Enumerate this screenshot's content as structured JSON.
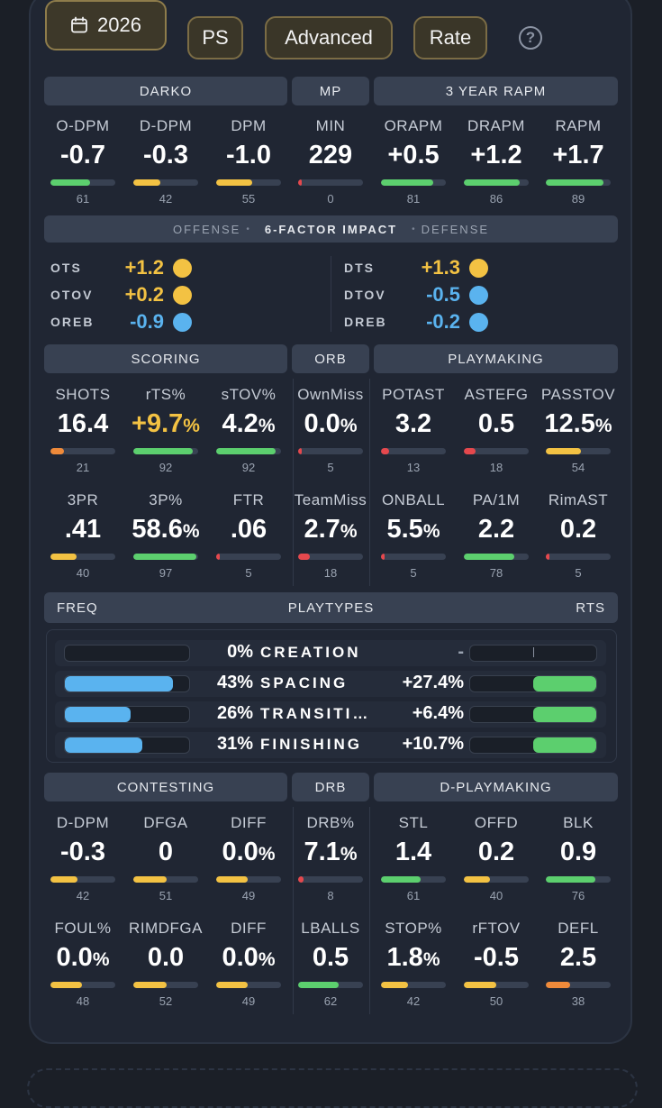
{
  "topbar": {
    "year_label": "2026",
    "ps_label": "PS",
    "advanced_label": "Advanced",
    "rate_label": "Rate",
    "help_label": "?"
  },
  "colors": {
    "green": "#5ccf6e",
    "gold": "#f3c243",
    "orange": "#ef8a3a",
    "red": "#e5484d",
    "blue": "#5ab3ef"
  },
  "headers": {
    "darko": "DARKO",
    "mp": "MP",
    "rapm": "3 YEAR RAPM",
    "scoring": "SCORING",
    "orb": "ORB",
    "playmaking": "PLAYMAKING",
    "contesting": "CONTESTING",
    "drb": "DRB",
    "dplaymaking": "D-PLAYMAKING"
  },
  "sixfactor": {
    "offense": "OFFENSE",
    "title": "6-FACTOR IMPACT",
    "defense": "DEFENSE",
    "dot": "•",
    "left": [
      {
        "key": "OTS",
        "value": "+1.2",
        "color": "gold"
      },
      {
        "key": "OTOV",
        "value": "+0.2",
        "color": "gold"
      },
      {
        "key": "OREB",
        "value": "-0.9",
        "color": "blue"
      }
    ],
    "right": [
      {
        "key": "DTS",
        "value": "+1.3",
        "color": "gold"
      },
      {
        "key": "DTOV",
        "value": "-0.5",
        "color": "blue"
      },
      {
        "key": "DREB",
        "value": "-0.2",
        "color": "blue"
      }
    ]
  },
  "row1": [
    {
      "label": "O-DPM",
      "value": "-0.7",
      "pct": 61,
      "color": "green"
    },
    {
      "label": "D-DPM",
      "value": "-0.3",
      "pct": 42,
      "color": "gold"
    },
    {
      "label": "DPM",
      "value": "-1.0",
      "pct": 55,
      "color": "gold"
    },
    {
      "label": "MIN",
      "value": "229",
      "pct": 0,
      "color": "red"
    },
    {
      "label": "ORAPM",
      "value": "+0.5",
      "pct": 81,
      "color": "green"
    },
    {
      "label": "DRAPM",
      "value": "+1.2",
      "pct": 86,
      "color": "green"
    },
    {
      "label": "RAPM",
      "value": "+1.7",
      "pct": 89,
      "color": "green"
    }
  ],
  "row2": [
    {
      "label": "SHOTS",
      "value": "16.4",
      "unit": "",
      "pct": 21,
      "color": "orange"
    },
    {
      "label": "rTS%",
      "value": "+9.7",
      "unit": "%",
      "pct": 92,
      "color": "green",
      "gold": true
    },
    {
      "label": "sTOV%",
      "value": "4.2",
      "unit": "%",
      "pct": 92,
      "color": "green"
    },
    {
      "label": "OwnMiss",
      "value": "0.0",
      "unit": "%",
      "pct": 5,
      "color": "red"
    },
    {
      "label": "POTAST",
      "value": "3.2",
      "unit": "",
      "pct": 13,
      "color": "red"
    },
    {
      "label": "ASTEFG",
      "value": "0.5",
      "unit": "",
      "pct": 18,
      "color": "red"
    },
    {
      "label": "PASSTOV",
      "value": "12.5",
      "unit": "%",
      "pct": 54,
      "color": "gold"
    }
  ],
  "row3": [
    {
      "label": "3PR",
      "value": ".41",
      "unit": "",
      "pct": 40,
      "color": "gold"
    },
    {
      "label": "3P%",
      "value": "58.6",
      "unit": "%",
      "pct": 97,
      "color": "green"
    },
    {
      "label": "FTR",
      "value": ".06",
      "unit": "",
      "pct": 5,
      "color": "red"
    },
    {
      "label": "TeamMiss",
      "value": "2.7",
      "unit": "%",
      "pct": 18,
      "color": "red"
    },
    {
      "label": "ONBALL",
      "value": "5.5",
      "unit": "%",
      "pct": 5,
      "color": "red"
    },
    {
      "label": "PA/1M",
      "value": "2.2",
      "unit": "",
      "pct": 78,
      "color": "green"
    },
    {
      "label": "RimAST",
      "value": "0.2",
      "unit": "",
      "pct": 5,
      "color": "red"
    }
  ],
  "playtypes": {
    "freq_label": "FREQ",
    "title": "PLAYTYPES",
    "rts_label": "RTS",
    "rows": [
      {
        "freq": "0%",
        "name": "CREATION",
        "rts": "-",
        "freq_fill": 0,
        "rts_fill": 0
      },
      {
        "freq": "43%",
        "name": "SPACING",
        "rts": "+27.4%",
        "freq_fill": 0.87,
        "rts_fill": 0.5
      },
      {
        "freq": "26%",
        "name": "TRANSITI…",
        "rts": "+6.4%",
        "freq_fill": 0.53,
        "rts_fill": 0.5
      },
      {
        "freq": "31%",
        "name": "FINISHING",
        "rts": "+10.7%",
        "freq_fill": 0.62,
        "rts_fill": 0.5
      }
    ]
  },
  "row4": [
    {
      "label": "D-DPM",
      "value": "-0.3",
      "unit": "",
      "pct": 42,
      "color": "gold"
    },
    {
      "label": "DFGA",
      "value": "0",
      "unit": "",
      "pct": 51,
      "color": "gold"
    },
    {
      "label": "DIFF",
      "value": "0.0",
      "unit": "%",
      "pct": 49,
      "color": "gold"
    },
    {
      "label": "DRB%",
      "value": "7.1",
      "unit": "%",
      "pct": 8,
      "color": "red"
    },
    {
      "label": "STL",
      "value": "1.4",
      "unit": "",
      "pct": 61,
      "color": "green"
    },
    {
      "label": "OFFD",
      "value": "0.2",
      "unit": "",
      "pct": 40,
      "color": "gold"
    },
    {
      "label": "BLK",
      "value": "0.9",
      "unit": "",
      "pct": 76,
      "color": "green"
    }
  ],
  "row5": [
    {
      "label": "FOUL%",
      "value": "0.0",
      "unit": "%",
      "pct": 48,
      "color": "gold"
    },
    {
      "label": "RIMDFGA",
      "value": "0.0",
      "unit": "",
      "pct": 52,
      "color": "gold"
    },
    {
      "label": "DIFF",
      "value": "0.0",
      "unit": "%",
      "pct": 49,
      "color": "gold"
    },
    {
      "label": "LBALLS",
      "value": "0.5",
      "unit": "",
      "pct": 62,
      "color": "green"
    },
    {
      "label": "STOP%",
      "value": "1.8",
      "unit": "%",
      "pct": 42,
      "color": "gold"
    },
    {
      "label": "rFTOV",
      "value": "-0.5",
      "unit": "",
      "pct": 50,
      "color": "gold"
    },
    {
      "label": "DEFL",
      "value": "2.5",
      "unit": "",
      "pct": 38,
      "color": "orange"
    }
  ]
}
